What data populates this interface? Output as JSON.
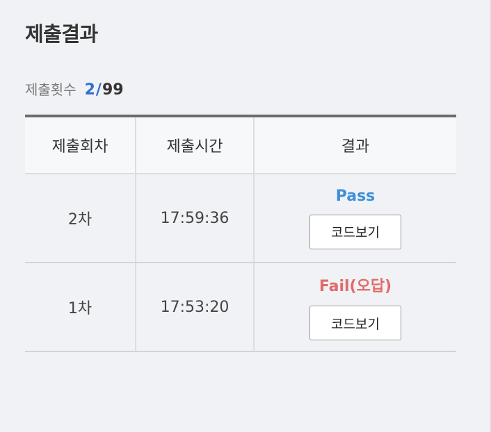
{
  "title": "제출결과",
  "submission_count": {
    "label": "제출횟수",
    "current": "2",
    "separator": "/",
    "max": "99"
  },
  "table": {
    "headers": [
      "제출회차",
      "제출시간",
      "결과"
    ],
    "rows": [
      {
        "round": "2차",
        "time": "17:59:36",
        "result": "Pass",
        "result_type": "pass",
        "button": "코드보기"
      },
      {
        "round": "1차",
        "time": "17:53:20",
        "result": "Fail(오답)",
        "result_type": "fail",
        "button": "코드보기"
      }
    ]
  },
  "colors": {
    "pass": "#3d8fd8",
    "fail": "#df6b6b",
    "count_accent": "#2f6fd0",
    "background": "#f1f2f5"
  }
}
